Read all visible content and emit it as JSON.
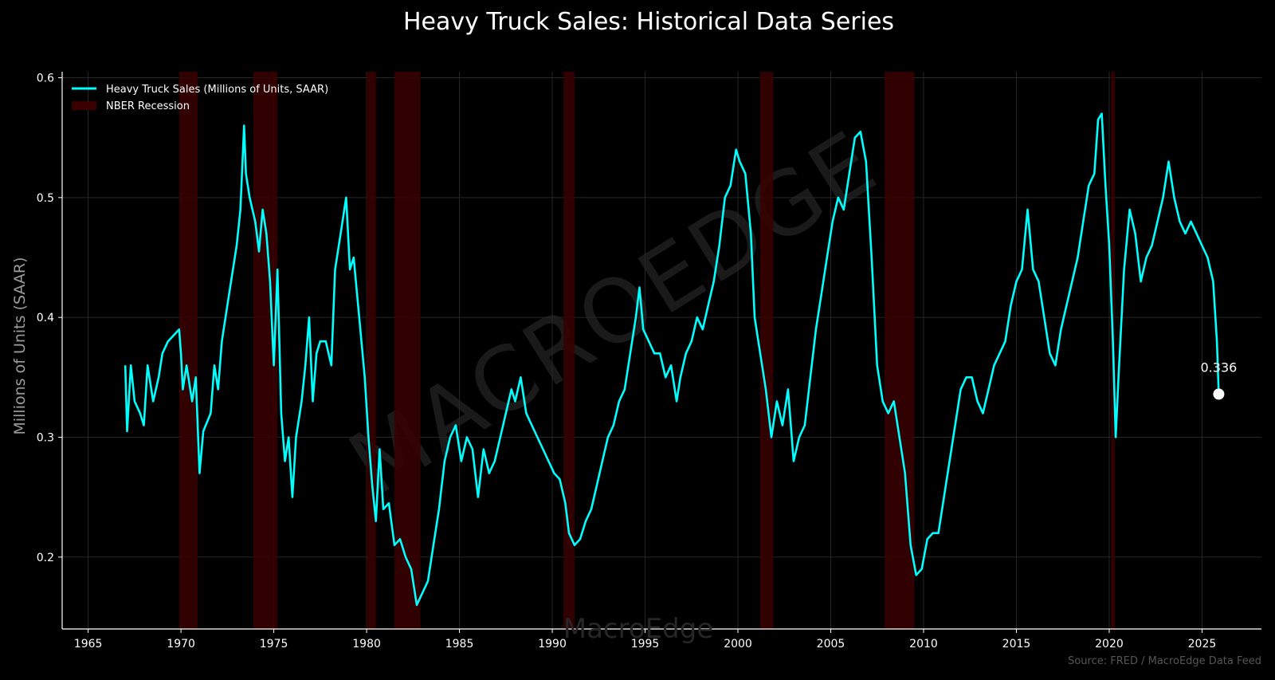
{
  "chart_data": {
    "type": "line",
    "title": "Heavy Truck Sales: Historical Data Series",
    "xlabel": "",
    "ylabel": "Millions of Units (SAAR)",
    "xlim": [
      1963.6,
      2028.2
    ],
    "ylim": [
      0.14,
      0.605
    ],
    "x_ticks": [
      "1965",
      "1970",
      "1975",
      "1980",
      "1985",
      "1990",
      "1995",
      "2000",
      "2005",
      "2010",
      "2015",
      "2020",
      "2025"
    ],
    "y_ticks": [
      "0.2",
      "0.3",
      "0.4",
      "0.5",
      "0.6"
    ],
    "grid": true,
    "legend_position": "top-left",
    "series": [
      {
        "name": "Heavy Truck Sales (Millions of Units, SAAR)",
        "color": "#00ffff",
        "points": [
          [
            1967.0,
            0.36
          ],
          [
            1967.1,
            0.305
          ],
          [
            1967.3,
            0.36
          ],
          [
            1967.5,
            0.33
          ],
          [
            1967.8,
            0.32
          ],
          [
            1968.0,
            0.31
          ],
          [
            1968.2,
            0.36
          ],
          [
            1968.5,
            0.33
          ],
          [
            1968.8,
            0.35
          ],
          [
            1969.0,
            0.37
          ],
          [
            1969.3,
            0.38
          ],
          [
            1969.6,
            0.385
          ],
          [
            1969.9,
            0.39
          ],
          [
            1970.0,
            0.37
          ],
          [
            1970.1,
            0.34
          ],
          [
            1970.3,
            0.36
          ],
          [
            1970.6,
            0.33
          ],
          [
            1970.8,
            0.35
          ],
          [
            1971.0,
            0.27
          ],
          [
            1971.2,
            0.305
          ],
          [
            1971.6,
            0.32
          ],
          [
            1971.8,
            0.36
          ],
          [
            1972.0,
            0.34
          ],
          [
            1972.2,
            0.38
          ],
          [
            1972.5,
            0.41
          ],
          [
            1972.8,
            0.44
          ],
          [
            1973.0,
            0.46
          ],
          [
            1973.2,
            0.49
          ],
          [
            1973.4,
            0.56
          ],
          [
            1973.5,
            0.52
          ],
          [
            1973.7,
            0.5
          ],
          [
            1974.0,
            0.48
          ],
          [
            1974.2,
            0.455
          ],
          [
            1974.4,
            0.49
          ],
          [
            1974.6,
            0.47
          ],
          [
            1974.8,
            0.43
          ],
          [
            1975.0,
            0.36
          ],
          [
            1975.2,
            0.44
          ],
          [
            1975.4,
            0.32
          ],
          [
            1975.6,
            0.28
          ],
          [
            1975.8,
            0.3
          ],
          [
            1976.0,
            0.25
          ],
          [
            1976.2,
            0.3
          ],
          [
            1976.5,
            0.33
          ],
          [
            1976.7,
            0.36
          ],
          [
            1976.9,
            0.4
          ],
          [
            1977.1,
            0.33
          ],
          [
            1977.3,
            0.37
          ],
          [
            1977.5,
            0.38
          ],
          [
            1977.8,
            0.38
          ],
          [
            1978.1,
            0.36
          ],
          [
            1978.3,
            0.44
          ],
          [
            1978.6,
            0.47
          ],
          [
            1978.9,
            0.5
          ],
          [
            1979.1,
            0.44
          ],
          [
            1979.3,
            0.45
          ],
          [
            1979.6,
            0.4
          ],
          [
            1979.9,
            0.35
          ],
          [
            1980.1,
            0.3
          ],
          [
            1980.3,
            0.26
          ],
          [
            1980.5,
            0.23
          ],
          [
            1980.7,
            0.29
          ],
          [
            1980.9,
            0.24
          ],
          [
            1981.2,
            0.245
          ],
          [
            1981.5,
            0.21
          ],
          [
            1981.8,
            0.215
          ],
          [
            1982.1,
            0.2
          ],
          [
            1982.4,
            0.19
          ],
          [
            1982.7,
            0.16
          ],
          [
            1983.0,
            0.17
          ],
          [
            1983.3,
            0.18
          ],
          [
            1983.6,
            0.21
          ],
          [
            1983.9,
            0.24
          ],
          [
            1984.2,
            0.28
          ],
          [
            1984.5,
            0.3
          ],
          [
            1984.8,
            0.31
          ],
          [
            1985.1,
            0.28
          ],
          [
            1985.4,
            0.3
          ],
          [
            1985.7,
            0.29
          ],
          [
            1986.0,
            0.25
          ],
          [
            1986.3,
            0.29
          ],
          [
            1986.6,
            0.27
          ],
          [
            1986.9,
            0.28
          ],
          [
            1987.2,
            0.3
          ],
          [
            1987.5,
            0.32
          ],
          [
            1987.8,
            0.34
          ],
          [
            1988.0,
            0.33
          ],
          [
            1988.3,
            0.35
          ],
          [
            1988.6,
            0.32
          ],
          [
            1988.9,
            0.31
          ],
          [
            1989.2,
            0.3
          ],
          [
            1989.5,
            0.29
          ],
          [
            1989.8,
            0.28
          ],
          [
            1990.1,
            0.27
          ],
          [
            1990.4,
            0.265
          ],
          [
            1990.7,
            0.245
          ],
          [
            1990.9,
            0.22
          ],
          [
            1991.2,
            0.21
          ],
          [
            1991.5,
            0.215
          ],
          [
            1991.8,
            0.23
          ],
          [
            1992.1,
            0.24
          ],
          [
            1992.4,
            0.26
          ],
          [
            1992.7,
            0.28
          ],
          [
            1993.0,
            0.3
          ],
          [
            1993.3,
            0.31
          ],
          [
            1993.6,
            0.33
          ],
          [
            1993.9,
            0.34
          ],
          [
            1994.2,
            0.37
          ],
          [
            1994.5,
            0.4
          ],
          [
            1994.7,
            0.425
          ],
          [
            1994.9,
            0.39
          ],
          [
            1995.2,
            0.38
          ],
          [
            1995.5,
            0.37
          ],
          [
            1995.8,
            0.37
          ],
          [
            1996.1,
            0.35
          ],
          [
            1996.4,
            0.36
          ],
          [
            1996.7,
            0.33
          ],
          [
            1996.9,
            0.35
          ],
          [
            1997.2,
            0.37
          ],
          [
            1997.5,
            0.38
          ],
          [
            1997.8,
            0.4
          ],
          [
            1998.1,
            0.39
          ],
          [
            1998.4,
            0.41
          ],
          [
            1998.7,
            0.43
          ],
          [
            1999.0,
            0.46
          ],
          [
            1999.3,
            0.5
          ],
          [
            1999.6,
            0.51
          ],
          [
            1999.9,
            0.54
          ],
          [
            2000.1,
            0.53
          ],
          [
            2000.4,
            0.52
          ],
          [
            2000.7,
            0.47
          ],
          [
            2000.9,
            0.4
          ],
          [
            2001.2,
            0.37
          ],
          [
            2001.5,
            0.34
          ],
          [
            2001.8,
            0.3
          ],
          [
            2002.1,
            0.33
          ],
          [
            2002.4,
            0.31
          ],
          [
            2002.7,
            0.34
          ],
          [
            2003.0,
            0.28
          ],
          [
            2003.3,
            0.3
          ],
          [
            2003.6,
            0.31
          ],
          [
            2003.9,
            0.35
          ],
          [
            2004.2,
            0.39
          ],
          [
            2004.5,
            0.42
          ],
          [
            2004.8,
            0.45
          ],
          [
            2005.1,
            0.48
          ],
          [
            2005.4,
            0.5
          ],
          [
            2005.7,
            0.49
          ],
          [
            2006.0,
            0.52
          ],
          [
            2006.3,
            0.55
          ],
          [
            2006.6,
            0.555
          ],
          [
            2006.9,
            0.53
          ],
          [
            2007.2,
            0.45
          ],
          [
            2007.5,
            0.36
          ],
          [
            2007.8,
            0.33
          ],
          [
            2008.1,
            0.32
          ],
          [
            2008.4,
            0.33
          ],
          [
            2008.7,
            0.3
          ],
          [
            2009.0,
            0.27
          ],
          [
            2009.3,
            0.21
          ],
          [
            2009.6,
            0.185
          ],
          [
            2009.9,
            0.19
          ],
          [
            2010.2,
            0.215
          ],
          [
            2010.5,
            0.22
          ],
          [
            2010.8,
            0.22
          ],
          [
            2011.1,
            0.25
          ],
          [
            2011.4,
            0.28
          ],
          [
            2011.7,
            0.31
          ],
          [
            2012.0,
            0.34
          ],
          [
            2012.3,
            0.35
          ],
          [
            2012.6,
            0.35
          ],
          [
            2012.9,
            0.33
          ],
          [
            2013.2,
            0.32
          ],
          [
            2013.5,
            0.34
          ],
          [
            2013.8,
            0.36
          ],
          [
            2014.1,
            0.37
          ],
          [
            2014.4,
            0.38
          ],
          [
            2014.7,
            0.41
          ],
          [
            2015.0,
            0.43
          ],
          [
            2015.3,
            0.44
          ],
          [
            2015.6,
            0.49
          ],
          [
            2015.9,
            0.44
          ],
          [
            2016.2,
            0.43
          ],
          [
            2016.5,
            0.4
          ],
          [
            2016.8,
            0.37
          ],
          [
            2017.1,
            0.36
          ],
          [
            2017.4,
            0.39
          ],
          [
            2017.7,
            0.41
          ],
          [
            2018.0,
            0.43
          ],
          [
            2018.3,
            0.45
          ],
          [
            2018.6,
            0.48
          ],
          [
            2018.9,
            0.51
          ],
          [
            2019.2,
            0.52
          ],
          [
            2019.4,
            0.565
          ],
          [
            2019.6,
            0.57
          ],
          [
            2019.8,
            0.51
          ],
          [
            2020.0,
            0.46
          ],
          [
            2020.2,
            0.38
          ],
          [
            2020.35,
            0.3
          ],
          [
            2020.5,
            0.35
          ],
          [
            2020.8,
            0.44
          ],
          [
            2021.1,
            0.49
          ],
          [
            2021.4,
            0.47
          ],
          [
            2021.7,
            0.43
          ],
          [
            2022.0,
            0.45
          ],
          [
            2022.3,
            0.46
          ],
          [
            2022.6,
            0.48
          ],
          [
            2022.9,
            0.5
          ],
          [
            2023.2,
            0.53
          ],
          [
            2023.5,
            0.5
          ],
          [
            2023.8,
            0.48
          ],
          [
            2024.1,
            0.47
          ],
          [
            2024.4,
            0.48
          ],
          [
            2024.7,
            0.47
          ],
          [
            2025.0,
            0.46
          ],
          [
            2025.3,
            0.45
          ],
          [
            2025.6,
            0.43
          ],
          [
            2025.8,
            0.38
          ],
          [
            2025.9,
            0.336
          ]
        ]
      }
    ],
    "recessions_label": "NBER Recession",
    "recession_color": "#3a0000",
    "recessions": [
      [
        1969.9,
        1970.9
      ],
      [
        1973.9,
        1975.2
      ],
      [
        1980.0,
        1980.5
      ],
      [
        1981.5,
        1982.9
      ],
      [
        1990.6,
        1991.2
      ],
      [
        2001.2,
        2001.9
      ],
      [
        2007.9,
        2009.5
      ],
      [
        2020.1,
        2020.3
      ]
    ],
    "annotation": {
      "x": 2025.9,
      "y": 0.336,
      "label": "0.336"
    },
    "source": "Source: FRED / MacroEdge Data Feed",
    "watermark_diagonal": "MACROEDGE",
    "watermark_bottom": "MacroEdge"
  }
}
